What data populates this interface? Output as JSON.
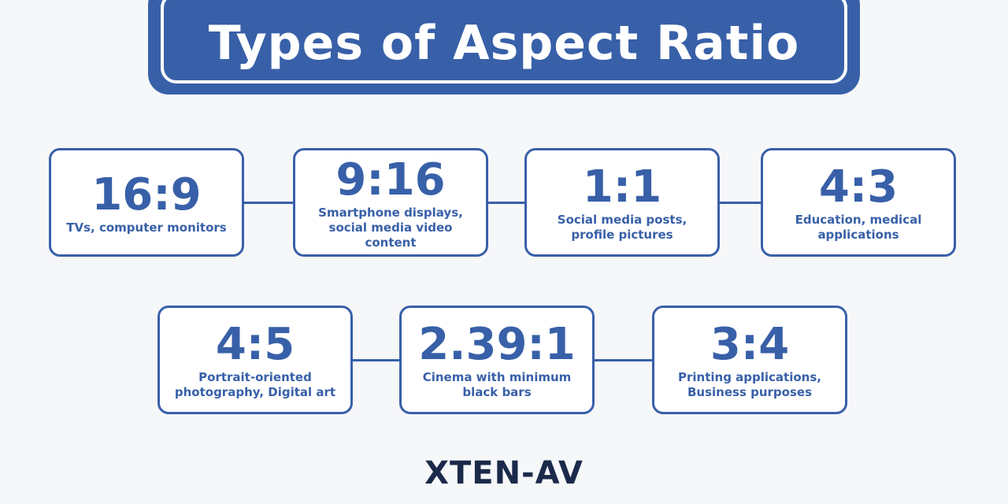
{
  "header": {
    "title": "Types of Aspect Ratio"
  },
  "rows": [
    [
      {
        "ratio": "16:9",
        "description": "TVs, computer monitors"
      },
      {
        "ratio": "9:16",
        "description": "Smartphone displays, social media video content"
      },
      {
        "ratio": "1:1",
        "description": "Social media posts, profile pictures"
      },
      {
        "ratio": "4:3",
        "description": "Education, medical applications"
      }
    ],
    [
      {
        "ratio": "4:5",
        "description": "Portrait-oriented photography, Digital art"
      },
      {
        "ratio": "2.39:1",
        "description": "Cinema with minimum black bars"
      },
      {
        "ratio": "3:4",
        "description": "Printing applications, Business purposes"
      }
    ]
  ],
  "logo": "XTEN-AV"
}
